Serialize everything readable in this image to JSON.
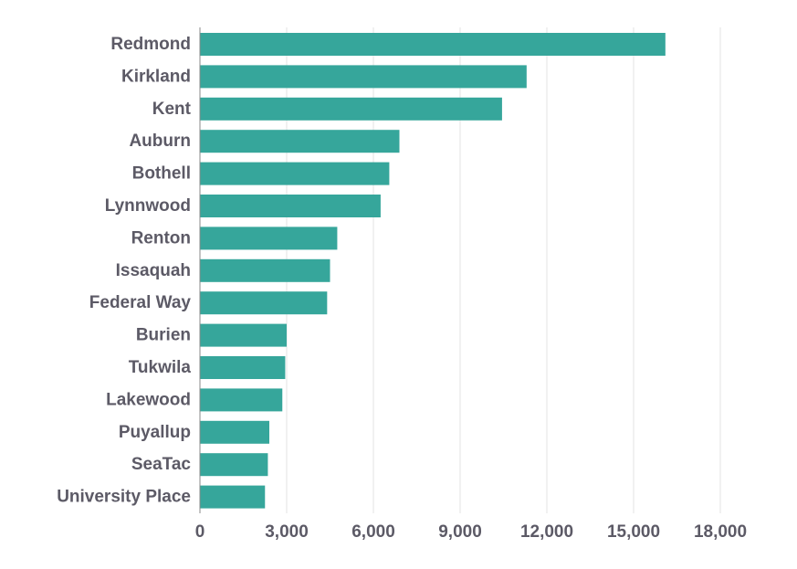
{
  "chart_data": {
    "type": "bar",
    "orientation": "horizontal",
    "categories": [
      "Redmond",
      "Kirkland",
      "Kent",
      "Auburn",
      "Bothell",
      "Lynnwood",
      "Renton",
      "Issaquah",
      "Federal Way",
      "Burien",
      "Tukwila",
      "Lakewood",
      "Puyallup",
      "SeaTac",
      "University Place"
    ],
    "values": [
      16100,
      11300,
      10450,
      6900,
      6550,
      6250,
      4750,
      4500,
      4400,
      3000,
      2950,
      2850,
      2400,
      2350,
      2250
    ],
    "xlim": [
      0,
      18000
    ],
    "xticks": [
      0,
      3000,
      6000,
      9000,
      12000,
      15000,
      18000
    ],
    "xtick_labels": [
      "0",
      "3,000",
      "6,000",
      "9,000",
      "12,000",
      "15,000",
      "18,000"
    ],
    "title": "",
    "xlabel": "",
    "ylabel": "",
    "grid": "vertical",
    "legend": "none",
    "bar_color": "#36a69b"
  }
}
